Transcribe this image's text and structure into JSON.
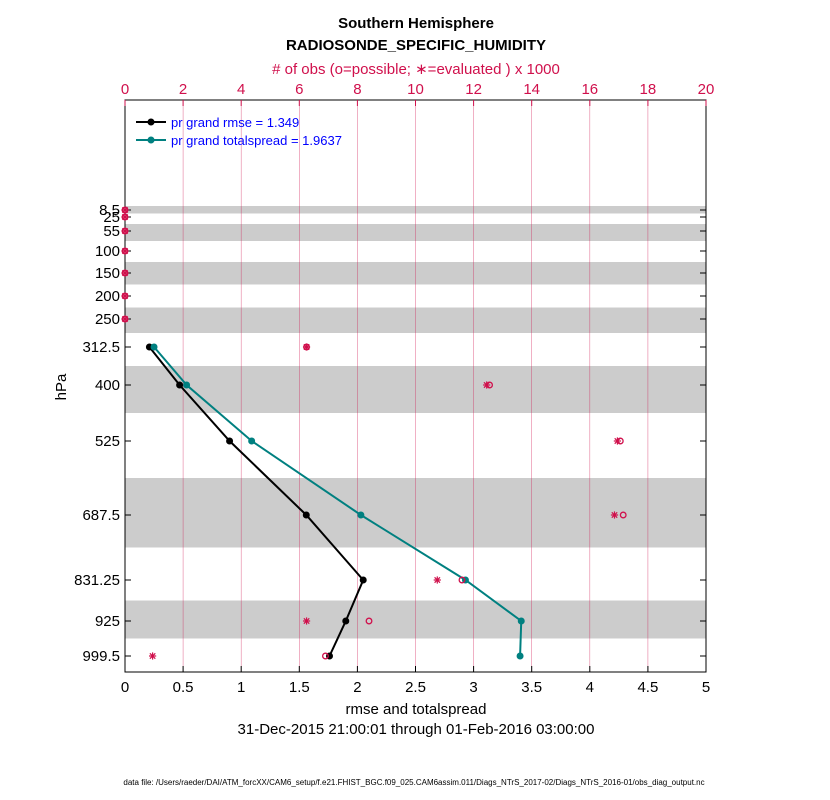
{
  "title": "Southern Hemisphere",
  "subtitle": "RADIOSONDE_SPECIFIC_HUMIDITY",
  "top_axis_label": "# of obs (o=possible; ∗=evaluated ) x 1000",
  "x_axis_label": "rmse and totalspread",
  "y_axis_label": "hPa",
  "date_range": "31-Dec-2015 21:00:01 through 01-Feb-2016 03:00:00",
  "footer": "data file: /Users/raeder/DAI/ATM_forcXX/CAM6_setup/f.e21.FHIST_BGC.f09_025.CAM6assim.011/Diags_NTrS_2017-02/Diags_NTrS_2016-01/obs_diag_output.nc",
  "colors": {
    "rmse": "#000000",
    "spread": "#008080",
    "obs": "#d0104c",
    "legend_text": "#0000ff",
    "band": "#cccccc"
  },
  "chart_data": {
    "type": "line",
    "xlim": [
      0,
      5
    ],
    "x_ticks": [
      "0",
      "0.5",
      "1",
      "1.5",
      "2",
      "2.5",
      "3",
      "3.5",
      "4",
      "4.5",
      "5"
    ],
    "top_xlim": [
      0,
      20
    ],
    "top_ticks": [
      "0",
      "2",
      "4",
      "6",
      "8",
      "10",
      "12",
      "14",
      "16",
      "18",
      "20"
    ],
    "y_levels": [
      8.5,
      25,
      55,
      100,
      150,
      200,
      250,
      312.5,
      400,
      525,
      687.5,
      831.25,
      925,
      999.5
    ],
    "y_tick_labels": [
      "8.5",
      "25",
      "55",
      "100",
      "150",
      "200",
      "250",
      "312.5",
      "400",
      "525",
      "687.5",
      "831.25",
      "925",
      "999.5"
    ],
    "series": [
      {
        "name": "pr grand rmse",
        "legend": "pr grand rmse = 1.349",
        "levels": [
          312.5,
          400,
          525,
          687.5,
          831.25,
          925,
          999.5
        ],
        "values": [
          0.21,
          0.47,
          0.9,
          1.56,
          2.05,
          1.9,
          1.76
        ]
      },
      {
        "name": "pr grand totalspread",
        "legend": "pr grand totalspread = 1.9637",
        "levels": [
          312.5,
          400,
          525,
          687.5,
          831.25,
          925,
          999.5
        ],
        "values": [
          0.25,
          0.53,
          1.09,
          2.03,
          2.93,
          3.41,
          3.4
        ]
      }
    ],
    "obs_possible": {
      "levels": [
        8.5,
        25,
        55,
        100,
        150,
        200,
        250,
        312.5,
        400,
        525,
        687.5,
        831.25,
        925,
        999.5
      ],
      "values": [
        0,
        0,
        0,
        0,
        0,
        0,
        0,
        6.25,
        12.55,
        17.05,
        17.15,
        11.6,
        8.4,
        6.9
      ]
    },
    "obs_evaluated": {
      "levels": [
        8.5,
        25,
        55,
        100,
        150,
        200,
        250,
        312.5,
        400,
        525,
        687.5,
        831.25,
        925,
        999.5
      ],
      "values": [
        0,
        0,
        0,
        0,
        0,
        0,
        0,
        6.25,
        12.45,
        16.95,
        16.85,
        10.75,
        6.25,
        0.95
      ]
    }
  }
}
